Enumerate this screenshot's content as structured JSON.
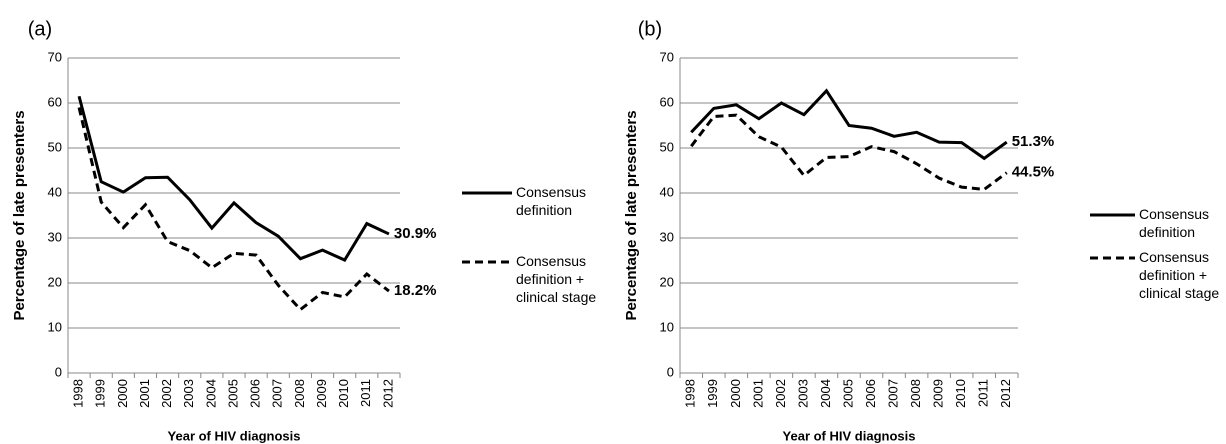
{
  "chart_data": [
    {
      "type": "line",
      "title": "(a)",
      "x_label": "Year of HIV diagnosis",
      "y_label": "Percentage of late presenters",
      "categories": [
        "1998",
        "1999",
        "2000",
        "2001",
        "2002",
        "2003",
        "2004",
        "2005",
        "2006",
        "2007",
        "2008",
        "2009",
        "2010",
        "2011",
        "2012"
      ],
      "ylim": [
        0,
        70
      ],
      "yticks": [
        0,
        10,
        20,
        30,
        40,
        50,
        60,
        70
      ],
      "grid": true,
      "legend": "right",
      "series": [
        {
          "name": "Consensus definition",
          "color": "#000000",
          "dash": "solid",
          "values": [
            61.5,
            42.5,
            40.2,
            43.4,
            43.5,
            38.5,
            32.2,
            37.8,
            33.4,
            30.4,
            25.4,
            27.3,
            25.1,
            33.2,
            30.9
          ]
        },
        {
          "name": "Consensus definition + clinical stage",
          "color": "#000000",
          "dash": "dashed",
          "values": [
            59,
            38,
            32.3,
            37.4,
            29.2,
            27.2,
            23.4,
            26.6,
            26.2,
            19.5,
            14.1,
            17.9,
            16.9,
            22,
            18.2
          ]
        }
      ],
      "annotations": [
        "30.9%",
        "18.2%"
      ]
    },
    {
      "type": "line",
      "title": "(b)",
      "x_label": "Year of HIV diagnosis",
      "y_label": "Percentage of late presenters",
      "categories": [
        "1998",
        "1999",
        "2000",
        "2001",
        "2002",
        "2003",
        "2004",
        "2005",
        "2006",
        "2007",
        "2008",
        "2009",
        "2010",
        "2011",
        "2012"
      ],
      "ylim": [
        0,
        70
      ],
      "yticks": [
        0,
        10,
        20,
        30,
        40,
        50,
        60,
        70
      ],
      "grid": true,
      "legend": "right",
      "series": [
        {
          "name": "Consensus definition",
          "color": "#000000",
          "dash": "solid",
          "values": [
            53.5,
            58.8,
            59.6,
            56.5,
            60,
            57.4,
            62.7,
            55,
            54.4,
            52.6,
            53.5,
            51.3,
            51.2,
            47.7,
            51.3
          ]
        },
        {
          "name": "Consensus definition + clinical stage",
          "color": "#000000",
          "dash": "dashed",
          "values": [
            50.4,
            57,
            57.3,
            52.5,
            50.2,
            43.9,
            47.9,
            48.1,
            50.3,
            49.2,
            46.5,
            43.3,
            41.3,
            40.8,
            44.5
          ]
        }
      ],
      "annotations": [
        "51.3%",
        "44.5%"
      ]
    }
  ]
}
